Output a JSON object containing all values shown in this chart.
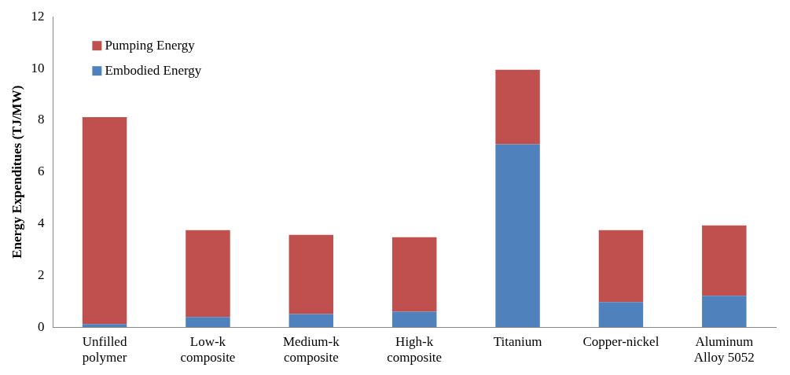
{
  "chart_data": {
    "type": "bar",
    "stacked": true,
    "ylabel": "Energy Expenditues (TJ/MW)",
    "categories": [
      "Unfilled polymer",
      "Low-k composite",
      "Medium-k composite",
      "High-k composite",
      "Titanium",
      "Copper-nickel",
      "Aluminum Alloy 5052"
    ],
    "series": [
      {
        "name": "Embodied Energy",
        "color": "#4f81bd",
        "values": [
          0.12,
          0.39,
          0.51,
          0.6,
          7.07,
          0.97,
          1.21
        ]
      },
      {
        "name": "Pumping Energy",
        "color": "#c0504d",
        "values": [
          8.0,
          3.36,
          3.06,
          2.88,
          2.88,
          2.78,
          2.72
        ]
      }
    ],
    "ylim": [
      0,
      12
    ],
    "yticks": [
      0,
      2,
      4,
      6,
      8,
      10,
      12
    ],
    "grid": false,
    "legend": "top left"
  }
}
